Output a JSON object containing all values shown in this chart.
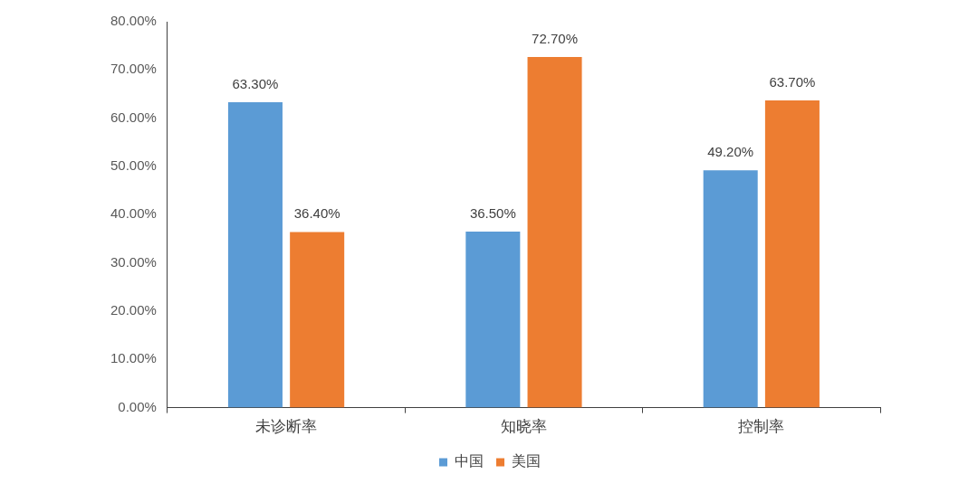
{
  "chart_data": {
    "type": "bar",
    "categories": [
      "未诊断率",
      "知晓率",
      "控制率"
    ],
    "series": [
      {
        "name": "中国",
        "color": "#5b9bd5",
        "values": [
          63.3,
          36.5,
          49.2
        ],
        "value_labels": [
          "63.30%",
          "36.50%",
          "49.20%"
        ]
      },
      {
        "name": "美国",
        "color": "#ed7d31",
        "values": [
          36.4,
          72.7,
          63.7
        ],
        "value_labels": [
          "36.40%",
          "72.70%",
          "63.70%"
        ]
      }
    ],
    "ylim": [
      0,
      80
    ],
    "yticks": [
      {
        "value": 0,
        "label": "0.00%"
      },
      {
        "value": 10,
        "label": "10.00%"
      },
      {
        "value": 20,
        "label": "20.00%"
      },
      {
        "value": 30,
        "label": "30.00%"
      },
      {
        "value": 40,
        "label": "40.00%"
      },
      {
        "value": 50,
        "label": "50.00%"
      },
      {
        "value": 60,
        "label": "60.00%"
      },
      {
        "value": 70,
        "label": "70.00%"
      },
      {
        "value": 80,
        "label": "80.00%"
      }
    ],
    "legend": "bottom"
  }
}
